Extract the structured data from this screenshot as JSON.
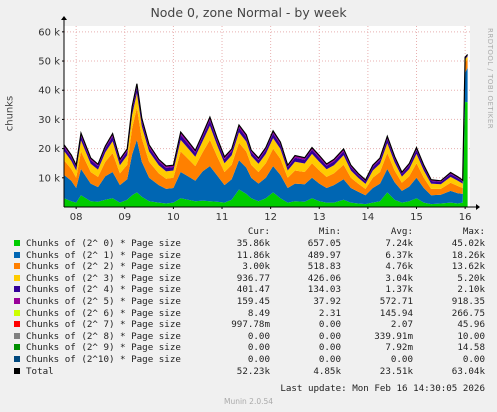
{
  "title": "Node 0, zone Normal - by week",
  "watermark": "RRDTOOL / TOBI OETIKER",
  "ylabel": "chunks",
  "legend_header": {
    "cur": "Cur:",
    "min": "Min:",
    "avg": "Avg:",
    "max": "Max:"
  },
  "legend": [
    {
      "label": "Chunks of (2^ 0) * Page size",
      "color": "#00cc00",
      "cur": "35.86k",
      "min": "657.05",
      "avg": "7.24k",
      "max": "45.02k"
    },
    {
      "label": "Chunks of (2^ 1) * Page size",
      "color": "#0066b3",
      "cur": "11.86k",
      "min": "489.97",
      "avg": "6.37k",
      "max": "18.26k"
    },
    {
      "label": "Chunks of (2^ 2) * Page size",
      "color": "#ff8000",
      "cur": "3.00k",
      "min": "518.83",
      "avg": "4.76k",
      "max": "13.62k"
    },
    {
      "label": "Chunks of (2^ 3) * Page size",
      "color": "#ffcc00",
      "cur": "936.77",
      "min": "426.06",
      "avg": "3.04k",
      "max": "5.20k"
    },
    {
      "label": "Chunks of (2^ 4) * Page size",
      "color": "#330099",
      "cur": "401.47",
      "min": "134.03",
      "avg": "1.37k",
      "max": "2.10k"
    },
    {
      "label": "Chunks of (2^ 5) * Page size",
      "color": "#990099",
      "cur": "159.45",
      "min": "37.92",
      "avg": "572.71",
      "max": "918.35"
    },
    {
      "label": "Chunks of (2^ 6) * Page size",
      "color": "#ccff00",
      "cur": "8.49",
      "min": "2.31",
      "avg": "145.94",
      "max": "266.75"
    },
    {
      "label": "Chunks of (2^ 7) * Page size",
      "color": "#ff0000",
      "cur": "997.78m",
      "min": "0.00",
      "avg": "2.07",
      "max": "45.96"
    },
    {
      "label": "Chunks of (2^ 8) * Page size",
      "color": "#808080",
      "cur": "0.00",
      "min": "0.00",
      "avg": "339.91m",
      "max": "10.00"
    },
    {
      "label": "Chunks of (2^ 9) * Page size",
      "color": "#008f00",
      "cur": "0.00",
      "min": "0.00",
      "avg": "7.92m",
      "max": "14.58"
    },
    {
      "label": "Chunks of (2^10) * Page size",
      "color": "#00487d",
      "cur": "0.00",
      "min": "0.00",
      "avg": "0.00",
      "max": "0.00"
    },
    {
      "label": "Total",
      "color": "#000000",
      "cur": "52.23k",
      "min": "4.85k",
      "avg": "23.51k",
      "max": "63.04k"
    }
  ],
  "last_update": "Last update: Mon Feb 16 14:30:05 2026",
  "munin_version": "Munin 2.0.54",
  "chart_data": {
    "type": "area",
    "stacked": true,
    "ylabel": "chunks",
    "ylim": [
      0,
      62000
    ],
    "yticks": [
      10000,
      20000,
      30000,
      40000,
      50000,
      60000
    ],
    "ytick_labels": [
      "10 k",
      "20 k",
      "30 k",
      "40 k",
      "50 k",
      "60 k"
    ],
    "xlim": [
      7.75,
      16.1
    ],
    "xticks": [
      8,
      9,
      10,
      11,
      12,
      13,
      14,
      15,
      16
    ],
    "xtick_labels": [
      "08",
      "09",
      "10",
      "11",
      "12",
      "13",
      "14",
      "15",
      "16"
    ],
    "grid": true,
    "x": [
      7.75,
      7.9,
      8.0,
      8.1,
      8.3,
      8.45,
      8.6,
      8.75,
      8.9,
      9.05,
      9.15,
      9.25,
      9.35,
      9.5,
      9.7,
      9.85,
      10.0,
      10.15,
      10.3,
      10.45,
      10.6,
      10.75,
      10.9,
      11.05,
      11.2,
      11.35,
      11.5,
      11.6,
      11.75,
      11.9,
      12.05,
      12.2,
      12.35,
      12.5,
      12.7,
      12.85,
      13.0,
      13.15,
      13.3,
      13.5,
      13.65,
      13.8,
      13.95,
      14.1,
      14.25,
      14.4,
      14.55,
      14.7,
      14.85,
      15.0,
      15.15,
      15.3,
      15.5,
      15.7,
      15.85,
      15.95,
      16.0,
      16.05
    ],
    "series": [
      {
        "name": "Chunks of (2^ 0) * Page size",
        "color": "#00cc00",
        "values": [
          3000,
          2000,
          1500,
          4000,
          2000,
          1800,
          2500,
          3000,
          1500,
          2500,
          4000,
          5000,
          3500,
          2000,
          1500,
          1200,
          1500,
          3000,
          2500,
          2000,
          2200,
          2000,
          1800,
          1500,
          2500,
          6000,
          4500,
          3000,
          2000,
          3000,
          5000,
          3000,
          1500,
          2000,
          1800,
          3000,
          2000,
          1500,
          1500,
          2500,
          1500,
          1200,
          1000,
          1500,
          2000,
          5000,
          2500,
          1500,
          2000,
          3000,
          1500,
          1000,
          1200,
          1500,
          1200,
          1500,
          36000,
          35860
        ]
      },
      {
        "name": "Chunks of (2^ 1) * Page size",
        "color": "#0066b3",
        "values": [
          8000,
          7000,
          5000,
          9000,
          6000,
          5000,
          8000,
          9000,
          6000,
          7000,
          14000,
          18000,
          12000,
          8000,
          6000,
          5000,
          5000,
          9000,
          8000,
          7000,
          10000,
          12000,
          9000,
          6000,
          7000,
          10000,
          9000,
          7000,
          6000,
          7000,
          9000,
          8000,
          5000,
          6000,
          6000,
          7000,
          6000,
          5000,
          6000,
          7000,
          5000,
          4000,
          3000,
          5000,
          6000,
          8000,
          6000,
          4000,
          5000,
          7000,
          5000,
          3000,
          3000,
          4000,
          3500,
          3000,
          10000,
          11860
        ]
      },
      {
        "name": "Chunks of (2^ 2) * Page size",
        "color": "#ff8000",
        "values": [
          5000,
          4000,
          3500,
          6000,
          4000,
          3500,
          5000,
          6500,
          4000,
          5000,
          9000,
          11000,
          8000,
          5500,
          4000,
          3500,
          3500,
          7000,
          6000,
          5000,
          6500,
          9000,
          6500,
          4500,
          5000,
          6000,
          5500,
          4500,
          4000,
          5000,
          6000,
          5500,
          3500,
          4500,
          4200,
          5000,
          4500,
          3800,
          4000,
          5000,
          3500,
          2800,
          2200,
          3500,
          4000,
          5500,
          4000,
          2800,
          3500,
          5000,
          3500,
          2200,
          2000,
          2800,
          2500,
          2000,
          3500,
          3000
        ]
      },
      {
        "name": "Chunks of (2^ 3) * Page size",
        "color": "#ffcc00",
        "values": [
          3200,
          2800,
          2500,
          3800,
          2800,
          2500,
          3200,
          4000,
          2800,
          3200,
          4500,
          5000,
          4200,
          3500,
          2800,
          2500,
          2500,
          4000,
          3600,
          3200,
          3800,
          4800,
          3800,
          3000,
          3200,
          3600,
          3400,
          3000,
          2800,
          3200,
          3600,
          3400,
          2500,
          3000,
          2900,
          3200,
          3000,
          2600,
          2800,
          3200,
          2500,
          2000,
          1700,
          2500,
          2800,
          3400,
          2800,
          2100,
          2500,
          3200,
          2500,
          1800,
          1600,
          2000,
          1800,
          1500,
          1100,
          937
        ]
      },
      {
        "name": "Chunks of (2^ 4) * Page size",
        "color": "#330099",
        "values": [
          1400,
          1300,
          1200,
          1600,
          1300,
          1200,
          1400,
          1700,
          1300,
          1400,
          1800,
          2000,
          1700,
          1500,
          1300,
          1200,
          1200,
          1700,
          1600,
          1400,
          1600,
          1900,
          1600,
          1400,
          1400,
          1600,
          1500,
          1300,
          1300,
          1400,
          1600,
          1500,
          1200,
          1400,
          1300,
          1400,
          1400,
          1200,
          1300,
          1400,
          1200,
          1000,
          900,
          1200,
          1300,
          1500,
          1300,
          1000,
          1200,
          1400,
          1200,
          900,
          800,
          1000,
          900,
          800,
          500,
          401
        ]
      },
      {
        "name": "Chunks of (2^ 5) * Page size",
        "color": "#990099",
        "values": [
          600,
          550,
          500,
          700,
          550,
          500,
          600,
          750,
          550,
          600,
          800,
          900,
          750,
          650,
          550,
          500,
          500,
          750,
          700,
          600,
          700,
          850,
          700,
          600,
          600,
          700,
          650,
          550,
          550,
          600,
          700,
          650,
          500,
          600,
          550,
          600,
          600,
          500,
          550,
          600,
          500,
          400,
          350,
          500,
          550,
          650,
          550,
          400,
          500,
          600,
          500,
          350,
          300,
          400,
          350,
          300,
          200,
          159
        ]
      },
      {
        "name": "Chunks of (2^ 6) * Page size",
        "color": "#ccff00",
        "values": [
          150,
          140,
          130,
          180,
          140,
          130,
          150,
          200,
          140,
          150,
          220,
          260,
          200,
          170,
          140,
          130,
          130,
          200,
          180,
          150,
          180,
          230,
          180,
          150,
          150,
          180,
          170,
          140,
          140,
          150,
          180,
          170,
          130,
          150,
          140,
          150,
          150,
          130,
          140,
          150,
          130,
          100,
          90,
          130,
          140,
          170,
          140,
          100,
          130,
          150,
          130,
          90,
          80,
          100,
          90,
          80,
          20,
          8
        ]
      },
      {
        "name": "Chunks of (2^ 7) * Page size",
        "color": "#ff0000",
        "values": [
          2,
          2,
          2,
          3,
          2,
          2,
          2,
          4,
          2,
          2,
          10,
          40,
          5,
          3,
          2,
          2,
          2,
          4,
          3,
          2,
          3,
          6,
          3,
          2,
          2,
          3,
          3,
          2,
          2,
          2,
          3,
          3,
          2,
          2,
          2,
          2,
          2,
          2,
          2,
          2,
          2,
          1,
          1,
          2,
          2,
          3,
          2,
          1,
          2,
          2,
          2,
          1,
          1,
          1,
          1,
          1,
          1,
          1
        ]
      },
      {
        "name": "Chunks of (2^ 8) * Page size",
        "color": "#808080",
        "values": [
          0,
          0,
          0,
          1,
          0,
          0,
          0,
          1,
          0,
          0,
          2,
          8,
          1,
          0,
          0,
          0,
          0,
          1,
          0,
          0,
          0,
          1,
          0,
          0,
          0,
          1,
          0,
          0,
          0,
          0,
          1,
          0,
          0,
          0,
          0,
          0,
          0,
          0,
          0,
          0,
          0,
          0,
          0,
          0,
          0,
          1,
          0,
          0,
          0,
          0,
          0,
          0,
          0,
          0,
          0,
          0,
          0,
          0
        ]
      },
      {
        "name": "Chunks of (2^ 9) * Page size",
        "color": "#008f00",
        "values": [
          0,
          0,
          0,
          0,
          0,
          0,
          0,
          0,
          0,
          0,
          0,
          14,
          0,
          0,
          0,
          0,
          0,
          0,
          0,
          0,
          0,
          0,
          0,
          0,
          0,
          0,
          0,
          0,
          0,
          0,
          0,
          0,
          0,
          0,
          0,
          0,
          0,
          0,
          0,
          0,
          0,
          0,
          0,
          0,
          0,
          0,
          0,
          0,
          0,
          0,
          0,
          0,
          0,
          0,
          0,
          0,
          0,
          0
        ]
      },
      {
        "name": "Chunks of (2^10) * Page size",
        "color": "#00487d",
        "values": [
          0,
          0,
          0,
          0,
          0,
          0,
          0,
          0,
          0,
          0,
          0,
          0,
          0,
          0,
          0,
          0,
          0,
          0,
          0,
          0,
          0,
          0,
          0,
          0,
          0,
          0,
          0,
          0,
          0,
          0,
          0,
          0,
          0,
          0,
          0,
          0,
          0,
          0,
          0,
          0,
          0,
          0,
          0,
          0,
          0,
          0,
          0,
          0,
          0,
          0,
          0,
          0,
          0,
          0,
          0,
          0,
          0,
          0
        ]
      }
    ],
    "total_line_color": "#000000"
  }
}
